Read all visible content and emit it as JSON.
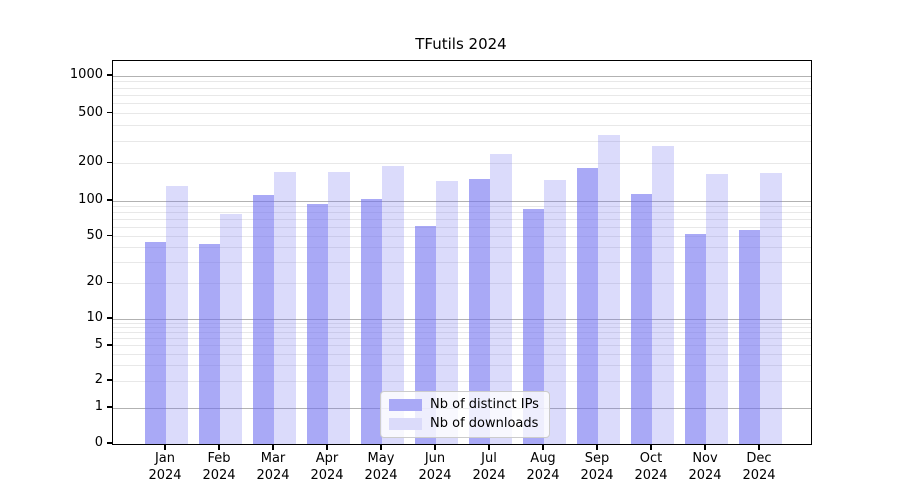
{
  "chart_data": {
    "type": "bar",
    "title": "TFutils 2024",
    "categories": [
      "Jan 2024",
      "Feb 2024",
      "Mar 2024",
      "Apr 2024",
      "May 2024",
      "Jun 2024",
      "Jul 2024",
      "Aug 2024",
      "Sep 2024",
      "Oct 2024",
      "Nov 2024",
      "Dec 2024"
    ],
    "series": [
      {
        "name": "Nb of distinct IPs",
        "color": "rgba(112,112,240,0.6)",
        "color_flat": "#a9a9f6",
        "values": [
          45,
          43,
          112,
          94,
          103,
          62,
          151,
          85,
          184,
          113,
          53,
          57
        ]
      },
      {
        "name": "Nb of downloads",
        "color": "rgba(112,112,240,0.25)",
        "color_flat": "#dbdbfa",
        "values": [
          133,
          78,
          171,
          170,
          190,
          145,
          238,
          146,
          338,
          276,
          164,
          168
        ]
      }
    ],
    "xlabel": "",
    "ylabel": "",
    "yscale": "symlog",
    "yticks": [
      0,
      1,
      2,
      5,
      10,
      20,
      50,
      100,
      200,
      500,
      1000
    ],
    "ylim": [
      0,
      1300
    ],
    "grid": {
      "enabled": true,
      "major_color": "#b2b2b2",
      "minor_color": "#e8e8e8"
    },
    "legend_position": "lower center (inside axes)",
    "background_color": "#ffffff"
  }
}
